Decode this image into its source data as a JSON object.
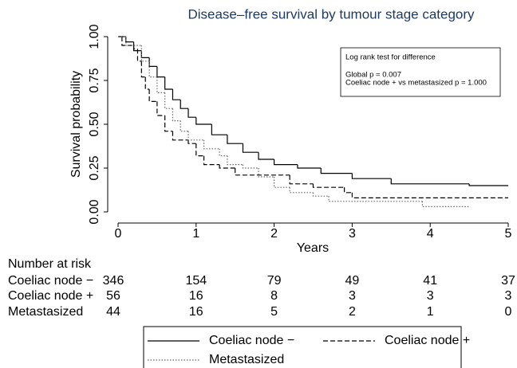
{
  "chart_data": {
    "type": "step",
    "title": "Disease–free survival by tumour stage category",
    "x_label": "Years",
    "y_label": "Survival probability",
    "xlim": [
      0,
      5
    ],
    "xticks": [
      0,
      1,
      2,
      3,
      4,
      5
    ],
    "ylim": [
      0,
      1
    ],
    "yticks": [
      {
        "value": 0,
        "label": "0.00"
      },
      {
        "value": 0.25,
        "label": "0.25"
      },
      {
        "value": 0.5,
        "label": "0.50"
      },
      {
        "value": 0.75,
        "label": "0.75"
      },
      {
        "value": 1,
        "label": "1.00"
      }
    ],
    "annotation": [
      "Log rank test for difference",
      "Global p = 0.007",
      "Coeliac node + vs metastasized p = 1.000"
    ],
    "series": [
      {
        "name": "Coeliac node −",
        "color": "#000000",
        "style": "solid",
        "x": [
          0,
          0.1,
          0.2,
          0.3,
          0.4,
          0.5,
          0.6,
          0.7,
          0.8,
          0.9,
          1.0,
          1.2,
          1.4,
          1.6,
          1.8,
          2.0,
          2.3,
          2.6,
          3.0,
          3.5,
          4.5,
          5.0
        ],
        "values": [
          1.0,
          0.97,
          0.92,
          0.88,
          0.83,
          0.77,
          0.7,
          0.64,
          0.59,
          0.54,
          0.5,
          0.44,
          0.39,
          0.34,
          0.3,
          0.27,
          0.25,
          0.22,
          0.19,
          0.16,
          0.15,
          0.15
        ]
      },
      {
        "name": "Coeliac node +",
        "color": "#000000",
        "style": "dashed",
        "x": [
          0,
          0.05,
          0.2,
          0.25,
          0.3,
          0.35,
          0.4,
          0.5,
          0.6,
          0.7,
          0.9,
          1.0,
          1.1,
          1.3,
          1.5,
          2.2,
          2.5,
          2.9,
          3.0,
          5.0
        ],
        "values": [
          1.0,
          0.95,
          0.93,
          0.86,
          0.77,
          0.7,
          0.63,
          0.55,
          0.46,
          0.41,
          0.39,
          0.32,
          0.27,
          0.25,
          0.21,
          0.16,
          0.14,
          0.11,
          0.08,
          0.08
        ]
      },
      {
        "name": "Metastasized",
        "color": "#666666",
        "style": "dotted",
        "x": [
          0,
          0.1,
          0.3,
          0.4,
          0.5,
          0.6,
          0.7,
          0.8,
          0.9,
          1.1,
          1.3,
          1.4,
          1.6,
          1.8,
          2.0,
          2.2,
          2.5,
          2.7,
          3.9,
          4.5
        ],
        "values": [
          1.0,
          0.95,
          0.86,
          0.77,
          0.68,
          0.59,
          0.52,
          0.46,
          0.41,
          0.36,
          0.32,
          0.27,
          0.25,
          0.2,
          0.14,
          0.11,
          0.09,
          0.06,
          0.03,
          0.03
        ]
      }
    ],
    "risk_table": {
      "title": "Number at risk",
      "rows": [
        {
          "name": "Coeliac node −",
          "values": [
            346,
            154,
            79,
            49,
            41,
            37
          ]
        },
        {
          "name": "Coeliac node +",
          "values": [
            56,
            16,
            8,
            3,
            3,
            3
          ]
        },
        {
          "name": "Metastasized",
          "values": [
            44,
            16,
            5,
            2,
            1,
            0
          ]
        }
      ]
    }
  }
}
